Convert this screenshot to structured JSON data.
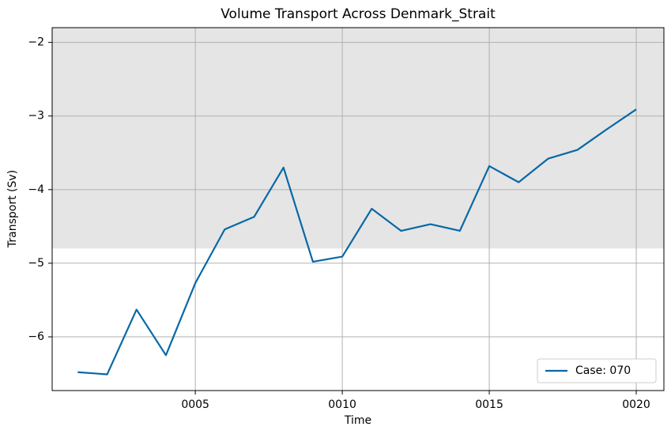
{
  "chart_data": {
    "type": "line",
    "title": "Volume Transport Across Denmark_Strait",
    "xlabel": "Time",
    "ylabel": "Transport (Sv)",
    "x": [
      1,
      2,
      3,
      4,
      5,
      6,
      7,
      8,
      9,
      10,
      11,
      12,
      13,
      14,
      15,
      16,
      17,
      18,
      19,
      20
    ],
    "series": [
      {
        "name": "Case: 070",
        "color": "#0868a6",
        "values": [
          -6.48,
          -6.51,
          -5.63,
          -6.25,
          -5.27,
          -4.54,
          -4.37,
          -3.7,
          -4.98,
          -4.91,
          -4.26,
          -4.56,
          -4.47,
          -4.56,
          -3.68,
          -3.9,
          -3.58,
          -3.46,
          -3.18,
          -2.91
        ]
      }
    ],
    "xlim": [
      0.13,
      20.94
    ],
    "ylim": [
      -6.73,
      -1.8
    ],
    "xticks": [
      {
        "value": 5,
        "label": "0005"
      },
      {
        "value": 10,
        "label": "0010"
      },
      {
        "value": 15,
        "label": "0015"
      },
      {
        "value": 20,
        "label": "0020"
      }
    ],
    "yticks": [
      {
        "value": -6,
        "label": "−6"
      },
      {
        "value": -5,
        "label": "−5"
      },
      {
        "value": -4,
        "label": "−4"
      },
      {
        "value": -3,
        "label": "−3"
      },
      {
        "value": -2,
        "label": "−2"
      }
    ],
    "band_ymin": -4.8,
    "band_color": "#e5e5e5",
    "grid": true,
    "legend": "lower right"
  }
}
